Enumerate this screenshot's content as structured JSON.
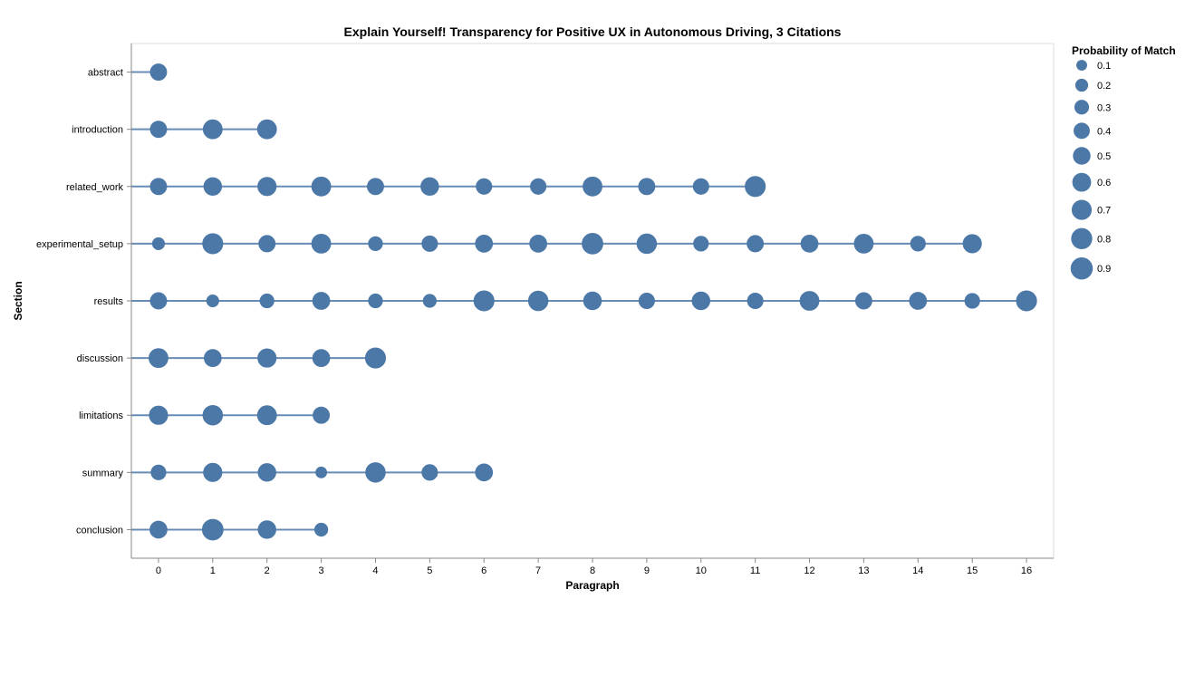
{
  "chart_data": {
    "type": "scatter",
    "title": "Explain Yourself! Transparency for Positive UX in Autonomous Driving, 3 Citations",
    "xlabel": "Paragraph",
    "ylabel": "Section",
    "x_ticks": [
      0,
      1,
      2,
      3,
      4,
      5,
      6,
      7,
      8,
      9,
      10,
      11,
      12,
      13,
      14,
      15,
      16
    ],
    "xlim": [
      -0.5,
      16.5
    ],
    "categories": [
      "abstract",
      "introduction",
      "related_work",
      "experimental_setup",
      "results",
      "discussion",
      "limitations",
      "summary",
      "conclusion"
    ],
    "size_legend": {
      "title": "Probability of Match",
      "values": [
        0.1,
        0.2,
        0.3,
        0.4,
        0.5,
        0.6,
        0.7,
        0.8,
        0.9
      ],
      "labels": [
        "0.1",
        "0.2",
        "0.3",
        "0.4",
        "0.5",
        "0.6",
        "0.7",
        "0.8",
        "0.9"
      ],
      "placement": "right"
    },
    "color": "#4c78a8",
    "grid": false,
    "series": [
      {
        "section": "abstract",
        "probabilities": [
          0.4
        ]
      },
      {
        "section": "introduction",
        "probabilities": [
          0.4,
          0.6,
          0.6
        ]
      },
      {
        "section": "related_work",
        "probabilities": [
          0.4,
          0.5,
          0.55,
          0.6,
          0.4,
          0.5,
          0.35,
          0.35,
          0.6,
          0.4,
          0.35,
          0.7
        ]
      },
      {
        "section": "experimental_setup",
        "probabilities": [
          0.15,
          0.7,
          0.4,
          0.6,
          0.25,
          0.35,
          0.45,
          0.45,
          0.75,
          0.65,
          0.3,
          0.4,
          0.45,
          0.6,
          0.3,
          0.55
        ]
      },
      {
        "section": "results",
        "probabilities": [
          0.4,
          0.15,
          0.25,
          0.45,
          0.25,
          0.2,
          0.7,
          0.65,
          0.5,
          0.35,
          0.5,
          0.35,
          0.6,
          0.4,
          0.45,
          0.3,
          0.7
        ]
      },
      {
        "section": "discussion",
        "probabilities": [
          0.6,
          0.45,
          0.55,
          0.45,
          0.7
        ]
      },
      {
        "section": "limitations",
        "probabilities": [
          0.55,
          0.65,
          0.6,
          0.4
        ]
      },
      {
        "section": "summary",
        "probabilities": [
          0.3,
          0.55,
          0.5,
          0.1,
          0.65,
          0.35,
          0.45
        ]
      },
      {
        "section": "conclusion",
        "probabilities": [
          0.45,
          0.75,
          0.5,
          0.2
        ]
      }
    ]
  }
}
